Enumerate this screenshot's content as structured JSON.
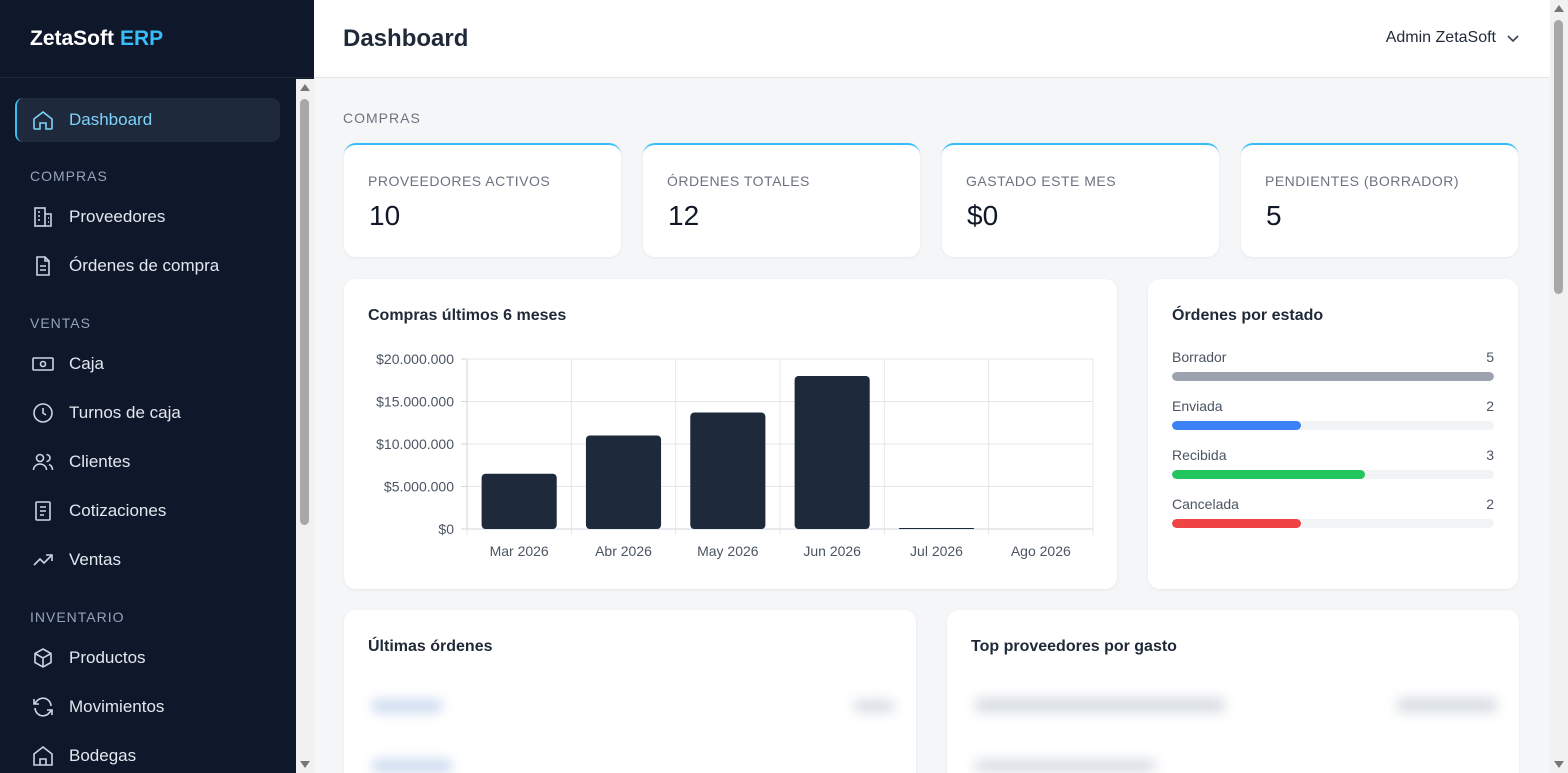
{
  "brand": {
    "name": "ZetaSoft",
    "accent": "ERP"
  },
  "sidebar": {
    "items": [
      {
        "label": "Dashboard",
        "icon": "home-icon",
        "active": true
      },
      {
        "section": "COMPRAS"
      },
      {
        "label": "Proveedores",
        "icon": "building-icon"
      },
      {
        "label": "Órdenes de compra",
        "icon": "document-icon"
      },
      {
        "section": "VENTAS"
      },
      {
        "label": "Caja",
        "icon": "cash-icon"
      },
      {
        "label": "Turnos de caja",
        "icon": "clock-icon"
      },
      {
        "label": "Clientes",
        "icon": "users-icon"
      },
      {
        "label": "Cotizaciones",
        "icon": "list-document-icon"
      },
      {
        "label": "Ventas",
        "icon": "trend-up-icon"
      },
      {
        "section": "INVENTARIO"
      },
      {
        "label": "Productos",
        "icon": "box-icon"
      },
      {
        "label": "Movimientos",
        "icon": "refresh-icon"
      },
      {
        "label": "Bodegas",
        "icon": "warehouse-icon"
      }
    ]
  },
  "header": {
    "title": "Dashboard",
    "user": "Admin ZetaSoft"
  },
  "section_label": "COMPRAS",
  "stats": [
    {
      "label": "PROVEEDORES ACTIVOS",
      "value": "10"
    },
    {
      "label": "ÓRDENES TOTALES",
      "value": "12"
    },
    {
      "label": "GASTADO ESTE MES",
      "value": "$0"
    },
    {
      "label": "PENDIENTES (BORRADOR)",
      "value": "5"
    }
  ],
  "chart_card": {
    "title": "Compras últimos 6 meses"
  },
  "chart_data": {
    "type": "bar",
    "title": "Compras últimos 6 meses",
    "categories": [
      "Mar 2026",
      "Abr 2026",
      "May 2026",
      "Jun 2026",
      "Jul 2026",
      "Ago 2026"
    ],
    "values": [
      6500000,
      11000000,
      13700000,
      18000000,
      50000,
      0
    ],
    "ylim": [
      0,
      20000000
    ],
    "yticks": [
      "$0",
      "$5.000.000",
      "$10.000.000",
      "$15.000.000",
      "$20.000.000"
    ],
    "xlabel": "",
    "ylabel": "",
    "grid": true,
    "bar_color": "#1e293b"
  },
  "status_card": {
    "title": "Órdenes por estado",
    "rows": [
      {
        "label": "Borrador",
        "count": "5",
        "fraction": 1.0,
        "color": "#9ca3af"
      },
      {
        "label": "Enviada",
        "count": "2",
        "fraction": 0.4,
        "color": "#3b82f6"
      },
      {
        "label": "Recibida",
        "count": "3",
        "fraction": 0.6,
        "color": "#22c55e"
      },
      {
        "label": "Cancelada",
        "count": "2",
        "fraction": 0.4,
        "color": "#ef4444"
      }
    ]
  },
  "bottom": {
    "orders_title": "Últimas órdenes",
    "suppliers_title": "Top proveedores por gasto"
  }
}
